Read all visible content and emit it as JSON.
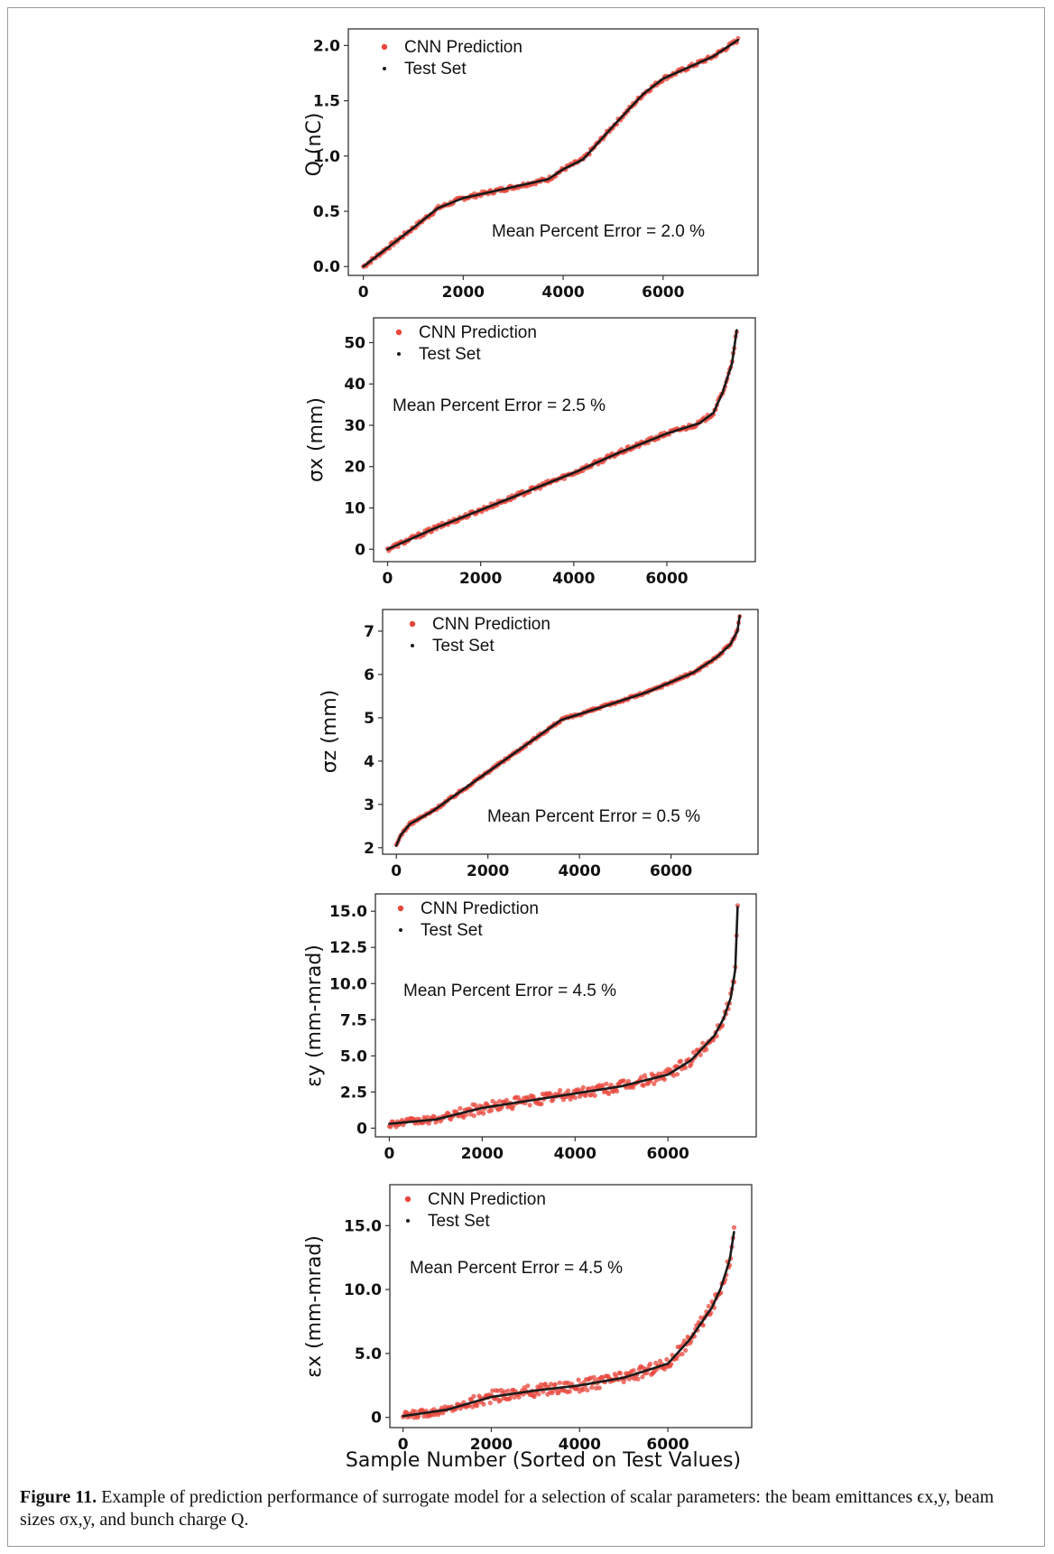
{
  "colors": {
    "prediction": "#e8473c",
    "test_set": "#1a1a1a",
    "axis": "#333333"
  },
  "figure": {
    "xlabel": "Sample Number (Sorted on Test Values)",
    "caption_label": "Figure 11.",
    "caption_text": "Example of prediction performance of surrogate model for a selection of scalar parameters: the beam emittances ϵx,y, beam sizes σx,y, and bunch charge Q."
  },
  "chart_data": [
    {
      "type": "scatter",
      "ylabel": "Q (nC)",
      "xlim": [
        -300,
        7900
      ],
      "ylim": [
        -0.08,
        2.15
      ],
      "xticks": [
        0,
        2000,
        4000,
        6000
      ],
      "xtick_labels": [
        "0",
        "2000",
        "4000",
        "6000"
      ],
      "yticks": [
        0.0,
        0.5,
        1.0,
        1.5,
        2.0
      ],
      "ytick_labels": [
        "0.0",
        "0.5",
        "1.0",
        "1.5",
        "2.0"
      ],
      "legend": [
        "CNN Prediction",
        "Test Set"
      ],
      "legend_position": "top-left",
      "annotation": "Mean Percent Error = 2.0 %",
      "annotation_position": "bottom-right",
      "series": [
        {
          "name": "CNN Prediction"
        },
        {
          "name": "Test Set",
          "x": [
            0,
            1000,
            1500,
            2000,
            3000,
            3700,
            4000,
            4400,
            5000,
            5600,
            6000,
            7000,
            7500
          ],
          "y": [
            0.0,
            0.35,
            0.53,
            0.62,
            0.72,
            0.79,
            0.88,
            0.97,
            1.27,
            1.56,
            1.7,
            1.9,
            2.05
          ]
        }
      ]
    },
    {
      "type": "scatter",
      "ylabel": "σx (mm)",
      "xlim": [
        -300,
        7900
      ],
      "ylim": [
        -3,
        56
      ],
      "xticks": [
        0,
        2000,
        4000,
        6000
      ],
      "xtick_labels": [
        "0",
        "2000",
        "4000",
        "6000"
      ],
      "yticks": [
        0,
        10,
        20,
        30,
        40,
        50
      ],
      "ytick_labels": [
        "0",
        "10",
        "20",
        "30",
        "40",
        "50"
      ],
      "legend": [
        "CNN Prediction",
        "Test Set"
      ],
      "legend_position": "top-left",
      "annotation": "Mean Percent Error = 2.5 %",
      "annotation_position": "upper-left",
      "series": [
        {
          "name": "CNN Prediction"
        },
        {
          "name": "Test Set",
          "x": [
            0,
            500,
            1000,
            2000,
            3000,
            4000,
            5000,
            6000,
            6700,
            7000,
            7200,
            7400,
            7500
          ],
          "y": [
            0,
            2.5,
            5,
            9.5,
            14,
            18.5,
            23.5,
            28,
            30.5,
            33,
            38,
            45,
            53
          ]
        }
      ]
    },
    {
      "type": "scatter",
      "ylabel": "σz (mm)",
      "xlim": [
        -300,
        7900
      ],
      "ylim": [
        1.85,
        7.5
      ],
      "xticks": [
        0,
        2000,
        4000,
        6000
      ],
      "xtick_labels": [
        "0",
        "2000",
        "4000",
        "6000"
      ],
      "yticks": [
        2,
        3,
        4,
        5,
        6,
        7
      ],
      "ytick_labels": [
        "2",
        "3",
        "4",
        "5",
        "6",
        "7"
      ],
      "legend": [
        "CNN Prediction",
        "Test Set"
      ],
      "legend_position": "top-left",
      "annotation": "Mean Percent Error = 0.5 %",
      "annotation_position": "bottom-right",
      "series": [
        {
          "name": "CNN Prediction"
        },
        {
          "name": "Test Set",
          "x": [
            0,
            100,
            300,
            800,
            2000,
            3000,
            3600,
            4500,
            5500,
            6500,
            7000,
            7300,
            7450,
            7500
          ],
          "y": [
            2.05,
            2.3,
            2.55,
            2.85,
            3.75,
            4.5,
            4.95,
            5.25,
            5.6,
            6.05,
            6.4,
            6.7,
            7.0,
            7.35
          ]
        }
      ]
    },
    {
      "type": "scatter",
      "ylabel": "εy (mm-mrad)",
      "xlim": [
        -300,
        7900
      ],
      "ylim": [
        -0.6,
        16.2
      ],
      "xticks": [
        0,
        2000,
        4000,
        6000
      ],
      "xtick_labels": [
        "0",
        "2000",
        "4000",
        "6000"
      ],
      "yticks": [
        0,
        2.5,
        5.0,
        7.5,
        10.0,
        12.5,
        15.0
      ],
      "ytick_labels": [
        "0",
        "2.5",
        "5.0",
        "7.5",
        "10.0",
        "12.5",
        "15.0"
      ],
      "legend": [
        "CNN Prediction",
        "Test Set"
      ],
      "legend_position": "top-left",
      "annotation": "Mean Percent Error = 4.5 %",
      "annotation_position": "upper-left",
      "series": [
        {
          "name": "CNN Prediction"
        },
        {
          "name": "Test Set",
          "x": [
            0,
            1000,
            2000,
            3000,
            4000,
            5000,
            6000,
            6500,
            7000,
            7200,
            7350,
            7450,
            7500
          ],
          "y": [
            0.3,
            0.6,
            1.4,
            1.9,
            2.4,
            2.9,
            3.7,
            4.7,
            6.4,
            7.6,
            9.0,
            11.0,
            15.3
          ]
        }
      ]
    },
    {
      "type": "scatter",
      "ylabel": "εx (mm-mrad)",
      "xlim": [
        -300,
        7900
      ],
      "ylim": [
        -0.8,
        18.2
      ],
      "xticks": [
        0,
        2000,
        4000,
        6000
      ],
      "xtick_labels": [
        "0",
        "2000",
        "4000",
        "6000"
      ],
      "yticks": [
        0,
        5.0,
        10.0,
        15.0
      ],
      "ytick_labels": [
        "0",
        "5.0",
        "10.0",
        "15.0"
      ],
      "legend": [
        "CNN Prediction",
        "Test Set"
      ],
      "legend_position": "top-left",
      "annotation": "Mean Percent Error = 4.5 %",
      "annotation_position": "upper-left",
      "series": [
        {
          "name": "CNN Prediction"
        },
        {
          "name": "Test Set",
          "x": [
            0,
            1000,
            2000,
            3000,
            4000,
            5000,
            6000,
            6500,
            7000,
            7200,
            7400,
            7500
          ],
          "y": [
            0.1,
            0.6,
            1.6,
            2.1,
            2.5,
            3.1,
            4.2,
            6.1,
            8.6,
            10.1,
            12.3,
            14.5
          ]
        }
      ]
    }
  ]
}
